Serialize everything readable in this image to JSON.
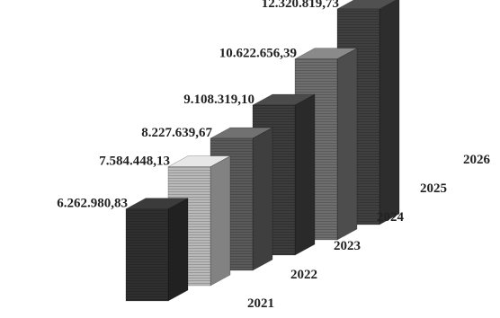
{
  "chart_data": {
    "type": "bar",
    "style": "3d-stepped",
    "title": "",
    "xlabel": "",
    "ylabel": "",
    "categories": [
      "2021",
      "2022",
      "2023",
      "2024",
      "2025",
      "2026"
    ],
    "values": [
      6262980.83,
      7584448.13,
      8227639.67,
      9108319.1,
      10622656.39,
      12320819.73
    ],
    "value_labels": [
      "6.262.980,83",
      "7.584.448,13",
      "8.227.639,67",
      "9.108.319,10",
      "10.622.656,39",
      "12.320.819,73"
    ],
    "colors": [
      "#2f2f2f",
      "#b9b9b9",
      "#5a5a5a",
      "#3c3c3c",
      "#6e6e6e",
      "#404040"
    ],
    "grid": false,
    "legend": "none"
  }
}
